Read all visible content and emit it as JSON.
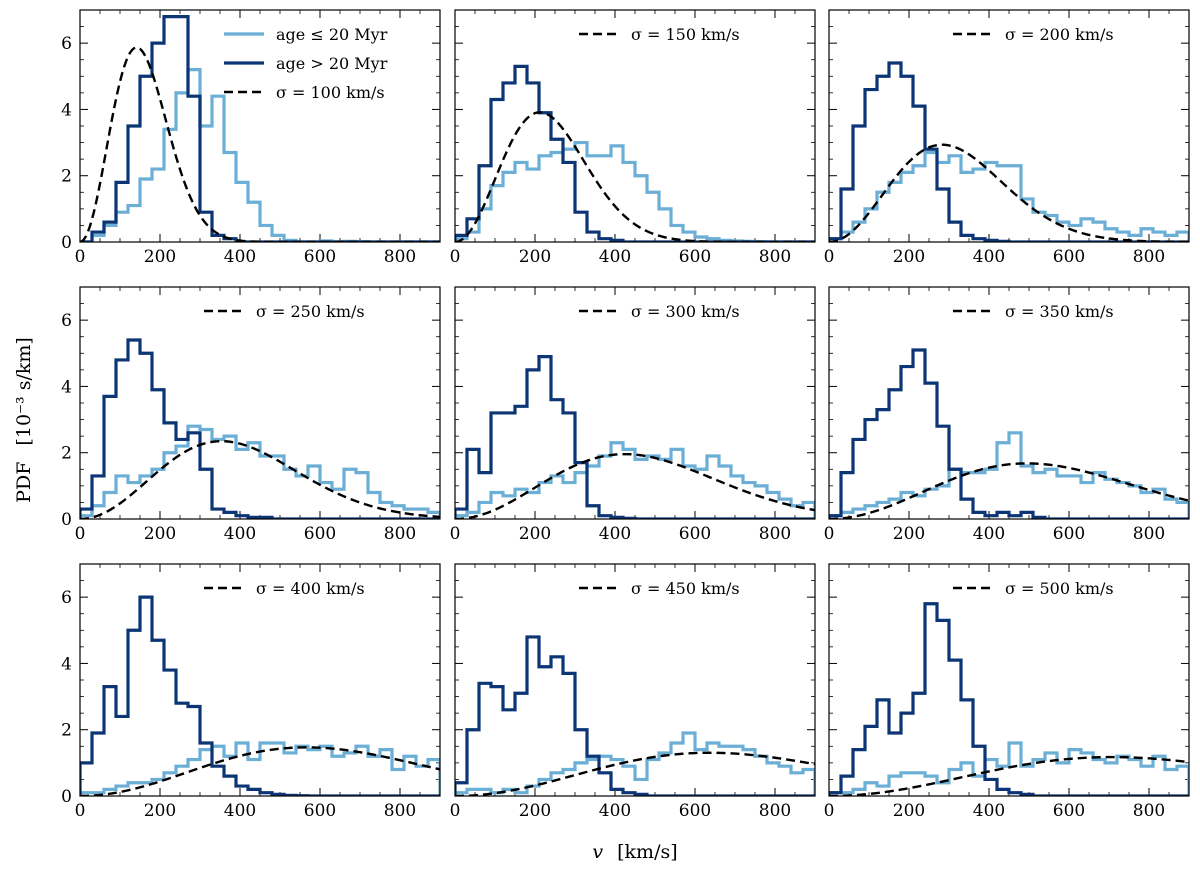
{
  "chart_data": {
    "type": "histogram-grid",
    "ylabel": "PDF",
    "ylabel_unit": "[10⁻³ s/km]",
    "xlabel": "v",
    "xlabel_unit": "[km/s]",
    "xlim": [
      0,
      900
    ],
    "ylim": [
      0,
      7
    ],
    "xticks": [
      0,
      200,
      400,
      600,
      800
    ],
    "yticks": [
      0,
      2,
      4,
      6
    ],
    "bin_width": 30,
    "bin_start": 0,
    "legend": {
      "young_label": "age ≤ 20 Myr",
      "old_label": "age > 20 Myr",
      "model_prefix": "σ = ",
      "model_unit": " km/s"
    },
    "colors": {
      "young": "#6baed6",
      "old": "#0b3574",
      "model": "#000000"
    },
    "panels": [
      {
        "sigma": 100,
        "old": [
          0.0,
          0.3,
          0.6,
          1.8,
          3.5,
          5.0,
          6.0,
          6.8,
          6.8,
          4.4,
          0.9,
          0.2,
          0.1,
          0,
          0,
          0,
          0,
          0,
          0,
          0,
          0,
          0,
          0,
          0,
          0,
          0,
          0,
          0,
          0,
          0
        ],
        "young": [
          0,
          0.2,
          0.5,
          0.9,
          1.1,
          1.9,
          2.2,
          3.4,
          4.5,
          5.2,
          3.5,
          4.4,
          2.7,
          1.8,
          1.2,
          0.5,
          0.2,
          0.05,
          0,
          0,
          0.03,
          0,
          0.02,
          0.01,
          0,
          0,
          0,
          0,
          0,
          0
        ]
      },
      {
        "sigma": 150,
        "old": [
          0.2,
          0.7,
          2.3,
          4.3,
          4.8,
          5.3,
          4.8,
          3.9,
          3.1,
          2.4,
          0.9,
          0.3,
          0.1,
          0.05,
          0,
          0,
          0,
          0,
          0,
          0,
          0,
          0,
          0,
          0,
          0,
          0,
          0,
          0,
          0,
          0
        ],
        "young": [
          0.1,
          0.3,
          1.0,
          1.7,
          2.1,
          2.4,
          2.2,
          2.6,
          2.7,
          2.8,
          3.0,
          2.6,
          2.6,
          2.9,
          2.4,
          2.0,
          1.5,
          1.0,
          0.5,
          0.3,
          0.15,
          0.1,
          0.05,
          0.03,
          0.02,
          0.01,
          0,
          0,
          0,
          0
        ]
      },
      {
        "sigma": 200,
        "old": [
          0.1,
          1.6,
          3.5,
          4.6,
          5.0,
          5.4,
          5.0,
          4.1,
          2.8,
          1.6,
          0.6,
          0.2,
          0.1,
          0.05,
          0.02,
          0,
          0,
          0,
          0,
          0,
          0,
          0,
          0,
          0,
          0,
          0,
          0,
          0,
          0,
          0
        ],
        "young": [
          0.1,
          0.3,
          0.6,
          1.0,
          1.5,
          1.8,
          2.1,
          2.3,
          2.7,
          2.4,
          2.6,
          2.1,
          2.2,
          2.4,
          2.3,
          2.3,
          1.3,
          0.9,
          0.8,
          0.6,
          0.5,
          0.7,
          0.6,
          0.4,
          0.3,
          0.2,
          0.4,
          0.3,
          0.2,
          0.3
        ]
      },
      {
        "sigma": 250,
        "old": [
          0.3,
          1.3,
          3.7,
          4.8,
          5.4,
          5.0,
          3.9,
          2.9,
          2.4,
          2.6,
          1.5,
          0.3,
          0.2,
          0.1,
          0.05,
          0.05,
          0,
          0,
          0,
          0,
          0,
          0,
          0,
          0,
          0,
          0,
          0,
          0,
          0,
          0
        ],
        "young": [
          0.1,
          0.4,
          0.8,
          1.3,
          1.1,
          1.3,
          1.5,
          2.0,
          2.2,
          2.8,
          2.7,
          2.4,
          2.5,
          2.1,
          2.3,
          1.9,
          1.9,
          1.5,
          1.3,
          1.6,
          1.1,
          0.9,
          1.5,
          1.4,
          0.8,
          0.5,
          0.4,
          0.3,
          0.3,
          0.2
        ]
      },
      {
        "sigma": 300,
        "old": [
          0.3,
          2.1,
          1.4,
          3.2,
          3.2,
          3.4,
          4.5,
          4.9,
          3.6,
          3.2,
          1.7,
          0.4,
          0.1,
          0.05,
          0.02,
          0,
          0,
          0,
          0,
          0,
          0,
          0,
          0,
          0,
          0,
          0,
          0,
          0,
          0,
          0
        ],
        "young": [
          0.1,
          0.2,
          0.5,
          0.8,
          0.7,
          0.9,
          0.8,
          1.1,
          1.3,
          1.1,
          1.4,
          1.6,
          1.9,
          2.3,
          2.1,
          1.8,
          1.9,
          1.8,
          2.1,
          1.6,
          1.5,
          1.9,
          1.6,
          1.3,
          1.1,
          1.0,
          0.8,
          0.6,
          0.4,
          0.5
        ]
      },
      {
        "sigma": 350,
        "old": [
          0.1,
          1.4,
          2.4,
          3.0,
          3.3,
          3.9,
          4.6,
          5.1,
          4.1,
          2.8,
          1.5,
          0.6,
          0.2,
          0.1,
          0.2,
          0.1,
          0.2,
          0.05,
          0,
          0,
          0,
          0,
          0,
          0,
          0,
          0,
          0,
          0,
          0,
          0
        ],
        "young": [
          0.1,
          0.2,
          0.3,
          0.4,
          0.5,
          0.6,
          0.8,
          0.7,
          0.9,
          1.0,
          1.5,
          1.4,
          1.4,
          1.5,
          2.3,
          2.6,
          1.6,
          1.4,
          1.5,
          1.3,
          1.3,
          1.1,
          1.4,
          1.2,
          1.1,
          1.0,
          0.8,
          0.9,
          0.6,
          0.5
        ]
      },
      {
        "sigma": 400,
        "old": [
          1.0,
          1.9,
          3.3,
          2.4,
          5.0,
          6.0,
          4.7,
          3.8,
          2.8,
          2.7,
          1.6,
          0.9,
          0.6,
          0.3,
          0.2,
          0.1,
          0.05,
          0.02,
          0.01,
          0,
          0,
          0,
          0,
          0,
          0,
          0,
          0,
          0,
          0,
          0
        ],
        "young": [
          0.1,
          0.1,
          0.2,
          0.3,
          0.4,
          0.4,
          0.5,
          0.7,
          0.9,
          1.1,
          1.4,
          1.5,
          1.2,
          1.6,
          1.1,
          1.6,
          1.6,
          1.3,
          1.5,
          1.4,
          1.5,
          1.2,
          1.3,
          1.5,
          1.2,
          1.4,
          0.8,
          1.2,
          0.9,
          1.1
        ]
      },
      {
        "sigma": 450,
        "old": [
          0.4,
          2.0,
          3.4,
          3.3,
          2.6,
          3.1,
          4.8,
          3.9,
          4.2,
          3.7,
          2.0,
          1.2,
          0.7,
          0.2,
          0.1,
          0.05,
          0,
          0,
          0,
          0,
          0,
          0,
          0,
          0,
          0,
          0,
          0,
          0,
          0,
          0
        ],
        "young": [
          0.1,
          0.2,
          0.2,
          0.1,
          0.2,
          0.1,
          0.3,
          0.5,
          0.7,
          0.8,
          1.0,
          1.1,
          1.2,
          1.1,
          0.9,
          0.5,
          1.1,
          1.3,
          1.6,
          1.9,
          1.4,
          1.6,
          1.5,
          1.5,
          1.4,
          1.2,
          1.0,
          0.9,
          0.7,
          0.8
        ]
      },
      {
        "sigma": 500,
        "old": [
          0.1,
          0.6,
          1.4,
          2.1,
          2.9,
          1.9,
          2.5,
          3.1,
          5.8,
          5.3,
          4.1,
          2.9,
          1.5,
          0.5,
          0.2,
          0.1,
          0.05,
          0,
          0,
          0,
          0,
          0,
          0,
          0,
          0,
          0,
          0,
          0,
          0,
          0
        ],
        "young": [
          0.1,
          0.1,
          0.2,
          0.4,
          0.3,
          0.6,
          0.7,
          0.7,
          0.6,
          0.4,
          0.8,
          1.0,
          0.6,
          1.1,
          0.9,
          1.6,
          0.9,
          1.1,
          1.3,
          1.0,
          1.4,
          1.3,
          1.1,
          1.0,
          1.2,
          1.1,
          0.9,
          1.2,
          0.8,
          0.9
        ]
      }
    ]
  }
}
